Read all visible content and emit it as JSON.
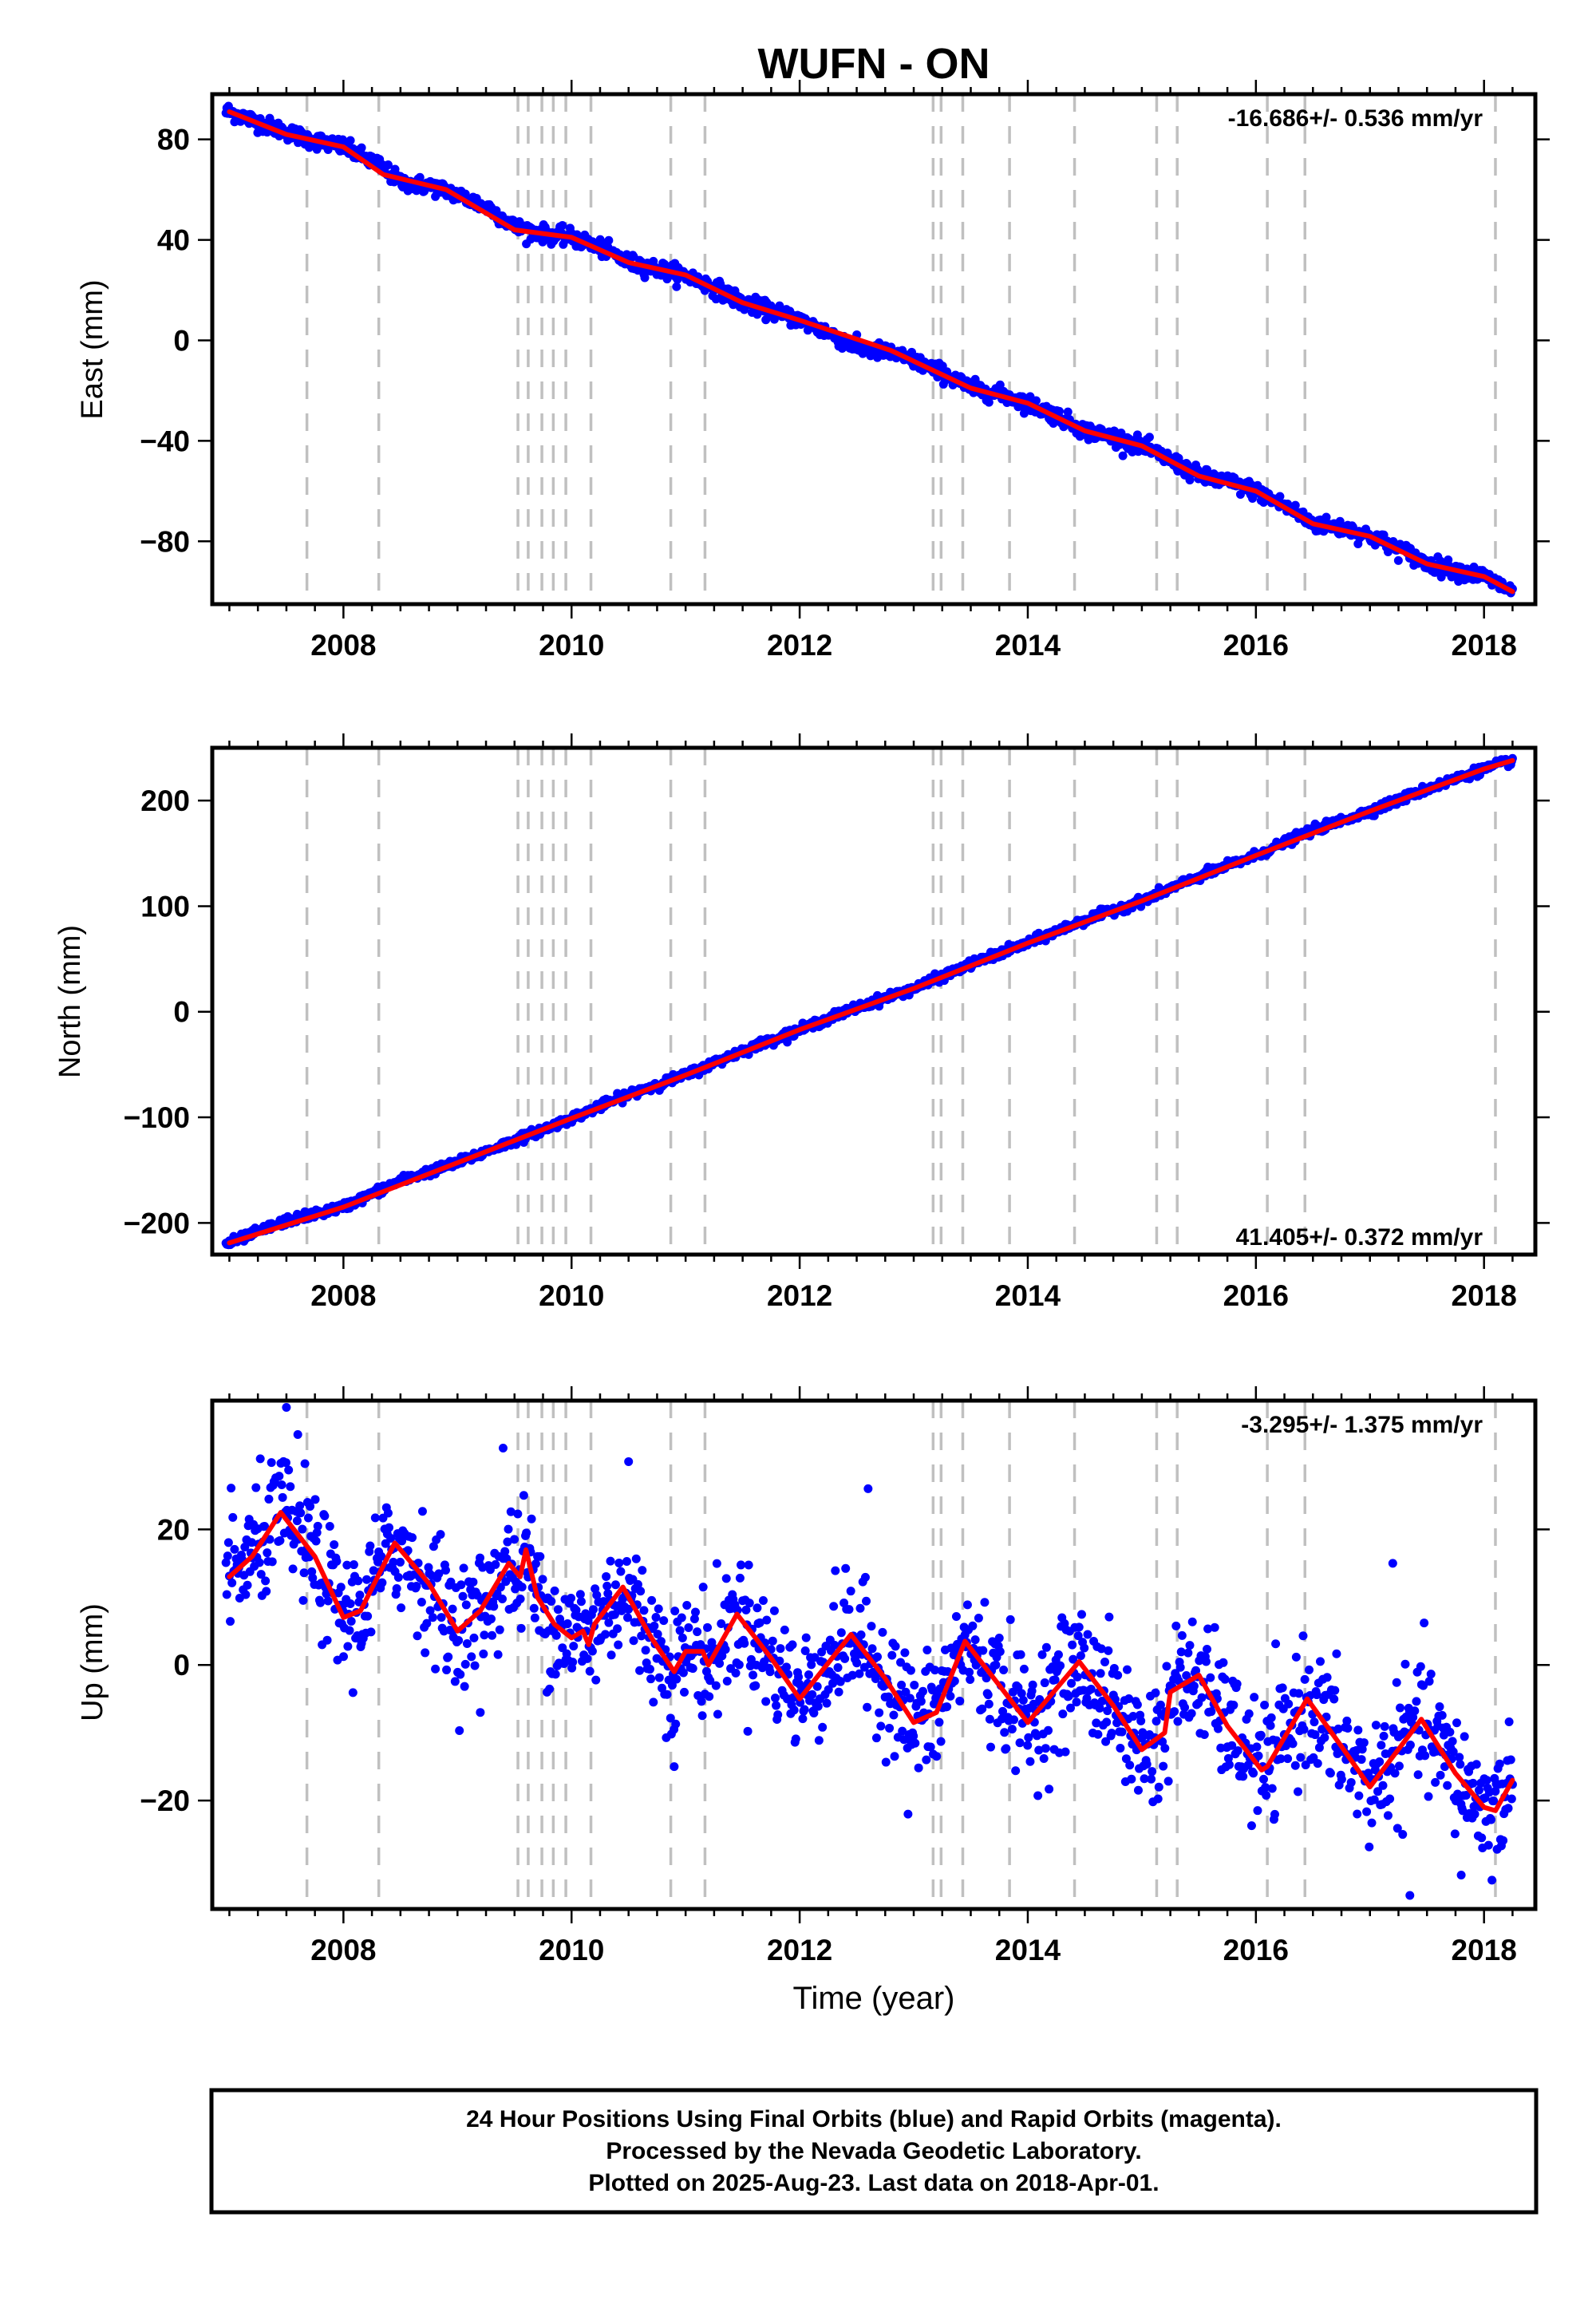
{
  "title": "WUFN - ON",
  "chart_data": [
    {
      "type": "scatter",
      "panel": "east",
      "ylabel": "East (mm)",
      "xlabel": "",
      "xlim": [
        2006.85,
        2018.45
      ],
      "ylim": [
        -105,
        98
      ],
      "yticks": [
        80,
        40,
        0,
        -40,
        -80
      ],
      "xticks": [
        2008,
        2010,
        2012,
        2014,
        2016,
        2018
      ],
      "rate_label": "-16.686+/- 0.536 mm/yr",
      "rate_position": "top-right",
      "grid": false,
      "series": [
        {
          "color": "#0000ff",
          "marker": "dot",
          "points": [
            [
              2007.0,
              91
            ],
            [
              2007.3,
              86
            ],
            [
              2007.7,
              80
            ],
            [
              2008.0,
              77
            ],
            [
              2008.3,
              70
            ],
            [
              2008.5,
              63
            ],
            [
              2008.8,
              61
            ],
            [
              2009.0,
              58
            ],
            [
              2009.3,
              52
            ],
            [
              2009.5,
              45
            ],
            [
              2009.8,
              42
            ],
            [
              2010.0,
              41
            ],
            [
              2010.3,
              36
            ],
            [
              2010.5,
              31
            ],
            [
              2010.8,
              28
            ],
            [
              2011.0,
              26
            ],
            [
              2011.3,
              20
            ],
            [
              2011.5,
              15
            ],
            [
              2011.8,
              11
            ],
            [
              2012.0,
              8
            ],
            [
              2012.3,
              2
            ],
            [
              2012.5,
              -3
            ],
            [
              2012.8,
              -5
            ],
            [
              2013.0,
              -8
            ],
            [
              2013.3,
              -14
            ],
            [
              2013.5,
              -19
            ],
            [
              2013.8,
              -22
            ],
            [
              2014.0,
              -25
            ],
            [
              2014.3,
              -31
            ],
            [
              2014.5,
              -36
            ],
            [
              2014.8,
              -39
            ],
            [
              2015.0,
              -42
            ],
            [
              2015.3,
              -49
            ],
            [
              2015.5,
              -54
            ],
            [
              2015.8,
              -57
            ],
            [
              2016.0,
              -60
            ],
            [
              2016.3,
              -67
            ],
            [
              2016.5,
              -73
            ],
            [
              2016.8,
              -75
            ],
            [
              2017.0,
              -78
            ],
            [
              2017.3,
              -84
            ],
            [
              2017.5,
              -89
            ],
            [
              2017.8,
              -92
            ],
            [
              2018.0,
              -94
            ],
            [
              2018.25,
              -100
            ]
          ]
        },
        {
          "color": "#ff0000",
          "marker": "line",
          "points": [
            [
              2007.0,
              91
            ],
            [
              2007.5,
              82
            ],
            [
              2008.0,
              77
            ],
            [
              2008.35,
              66
            ],
            [
              2008.9,
              60
            ],
            [
              2009.5,
              44
            ],
            [
              2010.0,
              41
            ],
            [
              2010.5,
              31
            ],
            [
              2011.0,
              26
            ],
            [
              2011.5,
              15
            ],
            [
              2012.0,
              8
            ],
            [
              2012.8,
              -4
            ],
            [
              2013.5,
              -19
            ],
            [
              2014.0,
              -25
            ],
            [
              2014.5,
              -36
            ],
            [
              2015.0,
              -42
            ],
            [
              2015.5,
              -54
            ],
            [
              2016.0,
              -60
            ],
            [
              2016.5,
              -73
            ],
            [
              2017.0,
              -78
            ],
            [
              2017.5,
              -89
            ],
            [
              2018.0,
              -94
            ],
            [
              2018.25,
              -100
            ]
          ]
        }
      ]
    },
    {
      "type": "scatter",
      "panel": "north",
      "ylabel": "North (mm)",
      "xlabel": "",
      "xlim": [
        2006.85,
        2018.45
      ],
      "ylim": [
        -230,
        250
      ],
      "yticks": [
        200,
        100,
        0,
        -100,
        -200
      ],
      "xticks": [
        2008,
        2010,
        2012,
        2014,
        2016,
        2018
      ],
      "rate_label": "41.405+/- 0.372 mm/yr",
      "rate_position": "bottom-right",
      "grid": false,
      "series": [
        {
          "color": "#0000ff",
          "marker": "dot",
          "points": [
            [
              2007.0,
              -219
            ],
            [
              2007.5,
              -198
            ],
            [
              2008.0,
              -185
            ],
            [
              2008.5,
              -160
            ],
            [
              2009.0,
              -143
            ],
            [
              2009.5,
              -122
            ],
            [
              2010.0,
              -101
            ],
            [
              2010.5,
              -78
            ],
            [
              2011.0,
              -60
            ],
            [
              2011.5,
              -37
            ],
            [
              2012.0,
              -17
            ],
            [
              2012.5,
              4
            ],
            [
              2013.0,
              22
            ],
            [
              2013.5,
              45
            ],
            [
              2014.0,
              65
            ],
            [
              2014.5,
              87
            ],
            [
              2015.0,
              105
            ],
            [
              2015.5,
              128
            ],
            [
              2016.0,
              148
            ],
            [
              2016.5,
              172
            ],
            [
              2017.0,
              190
            ],
            [
              2017.5,
              211
            ],
            [
              2018.0,
              230
            ],
            [
              2018.25,
              238
            ]
          ]
        },
        {
          "color": "#ff0000",
          "marker": "line",
          "points": [
            [
              2007.0,
              -219
            ],
            [
              2008.0,
              -185
            ],
            [
              2009.0,
              -143
            ],
            [
              2010.0,
              -101
            ],
            [
              2011.0,
              -60
            ],
            [
              2012.0,
              -17
            ],
            [
              2013.0,
              22
            ],
            [
              2014.0,
              65
            ],
            [
              2015.0,
              105
            ],
            [
              2016.0,
              148
            ],
            [
              2017.0,
              190
            ],
            [
              2018.0,
              230
            ],
            [
              2018.25,
              238
            ]
          ]
        }
      ]
    },
    {
      "type": "scatter",
      "panel": "up",
      "ylabel": "Up (mm)",
      "xlabel": "Time (year)",
      "xlim": [
        2006.85,
        2018.45
      ],
      "ylim": [
        -36,
        39
      ],
      "yticks": [
        20,
        0,
        -20
      ],
      "xticks": [
        2008,
        2010,
        2012,
        2014,
        2016,
        2018
      ],
      "rate_label": "-3.295+/- 1.375 mm/yr",
      "rate_position": "top-right",
      "grid": false,
      "series": [
        {
          "color": "#0000ff",
          "marker": "dot",
          "scatter_sd": 4.5,
          "outliers": [
            [
              2007.5,
              38
            ],
            [
              2007.6,
              34
            ],
            [
              2009.4,
              32
            ],
            [
              2010.5,
              30
            ],
            [
              2012.6,
              26
            ],
            [
              2012.95,
              -22
            ],
            [
              2017.2,
              15
            ],
            [
              2017.35,
              -34
            ],
            [
              2017.8,
              -31
            ],
            [
              2009.2,
              -7
            ],
            [
              2010.9,
              -15
            ]
          ]
        },
        {
          "color": "#ff0000",
          "marker": "line",
          "points": [
            [
              2007.0,
              13
            ],
            [
              2007.2,
              16
            ],
            [
              2007.45,
              22.5
            ],
            [
              2007.75,
              16
            ],
            [
              2008.0,
              7
            ],
            [
              2008.15,
              8
            ],
            [
              2008.45,
              18
            ],
            [
              2008.75,
              12
            ],
            [
              2009.0,
              5
            ],
            [
              2009.2,
              8
            ],
            [
              2009.45,
              15
            ],
            [
              2009.55,
              13
            ],
            [
              2009.6,
              17
            ],
            [
              2009.7,
              10
            ],
            [
              2009.85,
              6
            ],
            [
              2010.0,
              4
            ],
            [
              2010.1,
              5
            ],
            [
              2010.15,
              3
            ],
            [
              2010.2,
              6
            ],
            [
              2010.45,
              11.5
            ],
            [
              2010.7,
              4
            ],
            [
              2010.9,
              -1
            ],
            [
              2011.0,
              2
            ],
            [
              2011.15,
              2
            ],
            [
              2011.2,
              0
            ],
            [
              2011.45,
              7.5
            ],
            [
              2011.75,
              1
            ],
            [
              2012.0,
              -5
            ],
            [
              2012.45,
              4.5
            ],
            [
              2012.75,
              -2
            ],
            [
              2013.0,
              -8.5
            ],
            [
              2013.2,
              -7
            ],
            [
              2013.45,
              3.5
            ],
            [
              2013.75,
              -3
            ],
            [
              2014.0,
              -8.5
            ],
            [
              2014.45,
              0.5
            ],
            [
              2014.75,
              -6
            ],
            [
              2015.0,
              -12.5
            ],
            [
              2015.2,
              -10
            ],
            [
              2015.25,
              -4
            ],
            [
              2015.5,
              -1.5
            ],
            [
              2015.75,
              -9
            ],
            [
              2016.05,
              -15.5
            ],
            [
              2016.1,
              -15
            ],
            [
              2016.45,
              -5
            ],
            [
              2016.75,
              -12
            ],
            [
              2017.0,
              -18
            ],
            [
              2017.45,
              -8
            ],
            [
              2017.75,
              -16
            ],
            [
              2018.0,
              -21
            ],
            [
              2018.1,
              -21.5
            ],
            [
              2018.25,
              -17
            ]
          ]
        }
      ]
    }
  ],
  "vertical_dashed_lines": [
    2007.68,
    2008.31,
    2009.53,
    2009.62,
    2009.74,
    2009.84,
    2009.95,
    2010.17,
    2010.87,
    2011.17,
    2013.17,
    2013.24,
    2013.43,
    2013.84,
    2014.41,
    2015.13,
    2015.31,
    2016.1,
    2016.43,
    2018.1
  ],
  "colors": {
    "final_orbits": "#0000ff",
    "model_fit": "#ff0000",
    "discontinuities": "#c0c0c0",
    "frame": "#000000"
  },
  "footer": {
    "line1": "24 Hour Positions Using Final Orbits (blue) and Rapid Orbits (magenta).",
    "line2": "Processed by the Nevada Geodetic Laboratory.",
    "line3": "Plotted on 2025-Aug-23. Last data on 2018-Apr-01."
  }
}
